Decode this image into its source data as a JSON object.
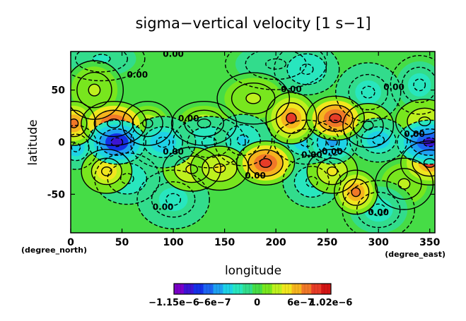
{
  "chart_data": {
    "type": "heatmap",
    "title": "sigma−vertical velocity [1 s−1]",
    "xlabel": "longitude",
    "ylabel": "latitude",
    "x_unit": "(degree_east)",
    "y_unit": "(degree_north)",
    "xlim": [
      0,
      355
    ],
    "ylim": [
      -87,
      87
    ],
    "x_ticks": [
      0,
      50,
      100,
      150,
      200,
      250,
      300,
      350
    ],
    "y_ticks": [
      50,
      0,
      -50
    ],
    "grid": false,
    "legend": "colorbar-bottom",
    "colorbar": {
      "min": -1.15e-06,
      "max": 1.02e-06,
      "labels": [
        "−1.15e−6",
        "−6e−7",
        "0",
        "6e−7",
        "1.02e−6"
      ],
      "label_values": [
        -1.15e-06,
        -6e-07,
        0,
        6e-07,
        1.02e-06
      ],
      "colors": [
        "#7a00c8",
        "#3c14d2",
        "#1430e6",
        "#1c64f0",
        "#1ea0f0",
        "#1ed2e6",
        "#28e6be",
        "#32dc8c",
        "#46dc46",
        "#78e61e",
        "#bef01e",
        "#f0e61e",
        "#f5b41e",
        "#f07828",
        "#e63c28",
        "#d21414"
      ]
    },
    "contour_labels": [
      "0.00",
      "0.00",
      "0.00",
      "0.00",
      "0.00",
      "0.00",
      "0.00",
      "0.00",
      "0.00",
      "0.00",
      "0.00",
      "0.00"
    ],
    "field": {
      "background_level": 0,
      "features": [
        {
          "lon": 42,
          "lat": 18,
          "value": 9.5e-07,
          "sx": 9,
          "sy": 6
        },
        {
          "lon": 3,
          "lat": 18,
          "value": 8e-07,
          "sx": 6,
          "sy": 6
        },
        {
          "lon": 215,
          "lat": 23,
          "value": 9e-07,
          "sx": 7,
          "sy": 7
        },
        {
          "lon": 258,
          "lat": 23,
          "value": 9.5e-07,
          "sx": 8,
          "sy": 6
        },
        {
          "lon": 290,
          "lat": 16,
          "value": 5e-07,
          "sx": 7,
          "sy": 6
        },
        {
          "lon": 345,
          "lat": 20,
          "value": 4e-07,
          "sx": 8,
          "sy": 6
        },
        {
          "lon": 130,
          "lat": 18,
          "value": 3.5e-07,
          "sx": 9,
          "sy": 6
        },
        {
          "lon": 75,
          "lat": 18,
          "value": 3.5e-07,
          "sx": 7,
          "sy": 6
        },
        {
          "lon": 23,
          "lat": 50,
          "value": 3e-07,
          "sx": 8,
          "sy": 8
        },
        {
          "lon": 178,
          "lat": 42,
          "value": 2.5e-07,
          "sx": 10,
          "sy": 7
        },
        {
          "lon": 190,
          "lat": -20,
          "value": 9.5e-07,
          "sx": 8,
          "sy": 6
        },
        {
          "lon": 350,
          "lat": -20,
          "value": 9e-07,
          "sx": 8,
          "sy": 6
        },
        {
          "lon": 35,
          "lat": -28,
          "value": 5.5e-07,
          "sx": 7,
          "sy": 6
        },
        {
          "lon": 118,
          "lat": -26,
          "value": 4.5e-07,
          "sx": 8,
          "sy": 6
        },
        {
          "lon": 145,
          "lat": -25,
          "value": 5e-07,
          "sx": 8,
          "sy": 6
        },
        {
          "lon": 255,
          "lat": -28,
          "value": 4.5e-07,
          "sx": 7,
          "sy": 6
        },
        {
          "lon": 278,
          "lat": -48,
          "value": 8e-07,
          "sx": 6,
          "sy": 6
        },
        {
          "lon": 325,
          "lat": -40,
          "value": 3e-07,
          "sx": 8,
          "sy": 7
        },
        {
          "lon": 45,
          "lat": 0,
          "value": -1.1e-06,
          "sx": 8,
          "sy": 6
        },
        {
          "lon": 90,
          "lat": 0,
          "value": -5e-07,
          "sx": 9,
          "sy": 7
        },
        {
          "lon": 135,
          "lat": 0,
          "value": -4e-07,
          "sx": 10,
          "sy": 7
        },
        {
          "lon": 168,
          "lat": 2,
          "value": -4.5e-07,
          "sx": 8,
          "sy": 7
        },
        {
          "lon": 230,
          "lat": 0,
          "value": -5e-07,
          "sx": 9,
          "sy": 6
        },
        {
          "lon": 255,
          "lat": 0,
          "value": -6.5e-07,
          "sx": 7,
          "sy": 6
        },
        {
          "lon": 300,
          "lat": 2,
          "value": -5.5e-07,
          "sx": 8,
          "sy": 6
        },
        {
          "lon": 350,
          "lat": 0,
          "value": -1.05e-06,
          "sx": 9,
          "sy": 6
        },
        {
          "lon": 5,
          "lat": -5,
          "value": -5e-07,
          "sx": 6,
          "sy": 6
        },
        {
          "lon": 55,
          "lat": -35,
          "value": -4e-07,
          "sx": 9,
          "sy": 7
        },
        {
          "lon": 100,
          "lat": -55,
          "value": -3.5e-07,
          "sx": 10,
          "sy": 8
        },
        {
          "lon": 235,
          "lat": -38,
          "value": -4e-07,
          "sx": 8,
          "sy": 7
        },
        {
          "lon": 300,
          "lat": -65,
          "value": -3e-07,
          "sx": 10,
          "sy": 8
        },
        {
          "lon": 30,
          "lat": 80,
          "value": -2.5e-07,
          "sx": 12,
          "sy": 6
        },
        {
          "lon": 200,
          "lat": 75,
          "value": -2e-07,
          "sx": 14,
          "sy": 7
        },
        {
          "lon": 290,
          "lat": 48,
          "value": -3.5e-07,
          "sx": 9,
          "sy": 8
        },
        {
          "lon": 340,
          "lat": 55,
          "value": -3e-07,
          "sx": 8,
          "sy": 8
        },
        {
          "lon": 230,
          "lat": 70,
          "value": -4e-07,
          "sx": 9,
          "sy": 7
        }
      ]
    }
  }
}
